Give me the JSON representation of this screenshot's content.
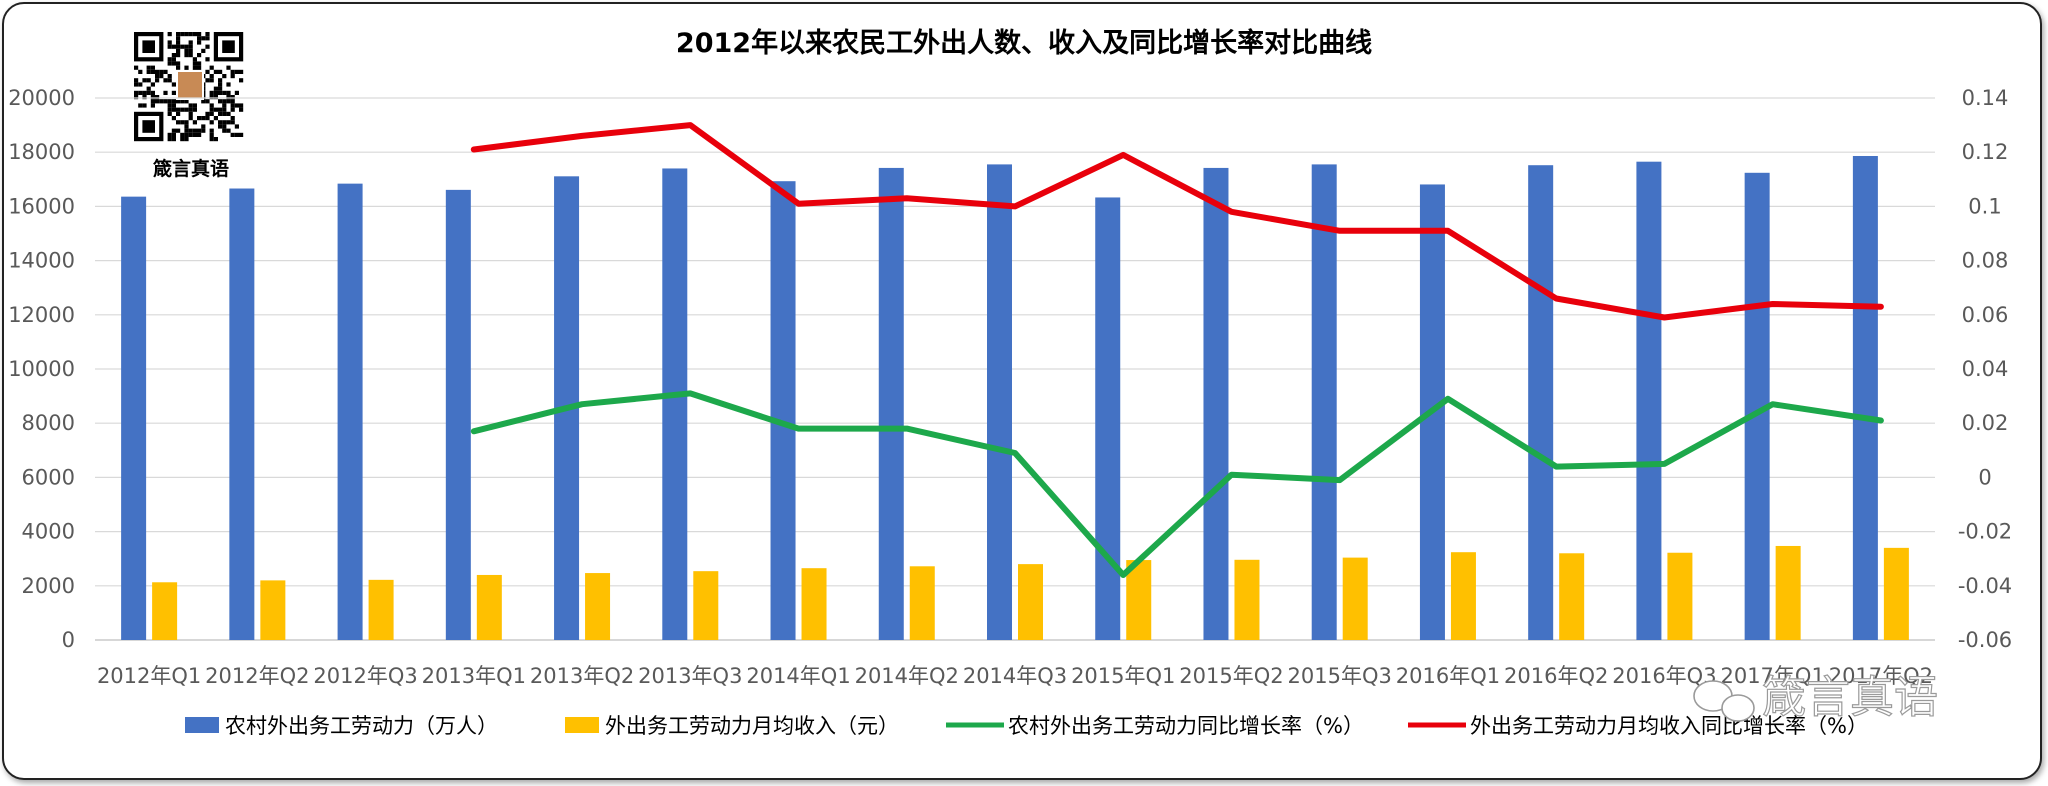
{
  "chart_data": {
    "type": "bar",
    "title": "2012年以来农民工外出人数、收入及同比增长率对比曲线",
    "categories": [
      "2012年Q1",
      "2012年Q2",
      "2012年Q3",
      "2013年Q1",
      "2013年Q2",
      "2013年Q3",
      "2014年Q1",
      "2014年Q2",
      "2014年Q3",
      "2015年Q1",
      "2015年Q2",
      "2015年Q3",
      "2016年Q1",
      "2016年Q2",
      "2016年Q3",
      "2017年Q1",
      "2017年Q2"
    ],
    "left_axis": {
      "ylim": [
        0,
        20000
      ],
      "ticks": [
        "0",
        "2000",
        "4000",
        "6000",
        "8000",
        "10000",
        "12000",
        "14000",
        "16000",
        "18000",
        "20000"
      ]
    },
    "right_axis": {
      "ylim": [
        -0.06,
        0.14
      ],
      "ticks": [
        "-0.06",
        "-0.04",
        "-0.02",
        "0",
        "0.02",
        "0.04",
        "0.06",
        "0.08",
        "0.1",
        "0.12",
        "0.14"
      ]
    },
    "series": [
      {
        "name": "农村外出务工劳动力（万人）",
        "type": "bar",
        "axis": "left",
        "color": "#4472C4",
        "values": [
          16360,
          16660,
          16840,
          16610,
          17110,
          17400,
          16930,
          17420,
          17550,
          16330,
          17420,
          17550,
          16810,
          17520,
          17650,
          17240,
          17860
        ]
      },
      {
        "name": "外出务工劳动力月均收入（元）",
        "type": "bar",
        "axis": "left",
        "color": "#FFC000",
        "values": [
          2130,
          2200,
          2220,
          2400,
          2470,
          2540,
          2650,
          2720,
          2800,
          2950,
          2960,
          3040,
          3240,
          3200,
          3220,
          3470,
          3400
        ]
      },
      {
        "name": "农村外出务工劳动力同比增长率（%）",
        "type": "line",
        "axis": "right",
        "color": "#1DA84B",
        "values": [
          null,
          null,
          null,
          0.017,
          0.027,
          0.031,
          0.018,
          0.018,
          0.009,
          -0.036,
          0.001,
          -0.001,
          0.029,
          0.004,
          0.005,
          0.027,
          0.021
        ]
      },
      {
        "name": "外出务工劳动力月均收入同比增长率（%）",
        "type": "line",
        "axis": "right",
        "color": "#E8000B",
        "values": [
          null,
          null,
          null,
          0.121,
          0.126,
          0.13,
          0.101,
          0.103,
          0.1,
          0.119,
          0.098,
          0.091,
          0.091,
          0.066,
          0.059,
          0.064,
          0.063
        ]
      }
    ],
    "grid": true,
    "legend": "bottom"
  },
  "logo": {
    "caption": "箴言真语"
  },
  "watermark": {
    "text": "箴言真语"
  }
}
